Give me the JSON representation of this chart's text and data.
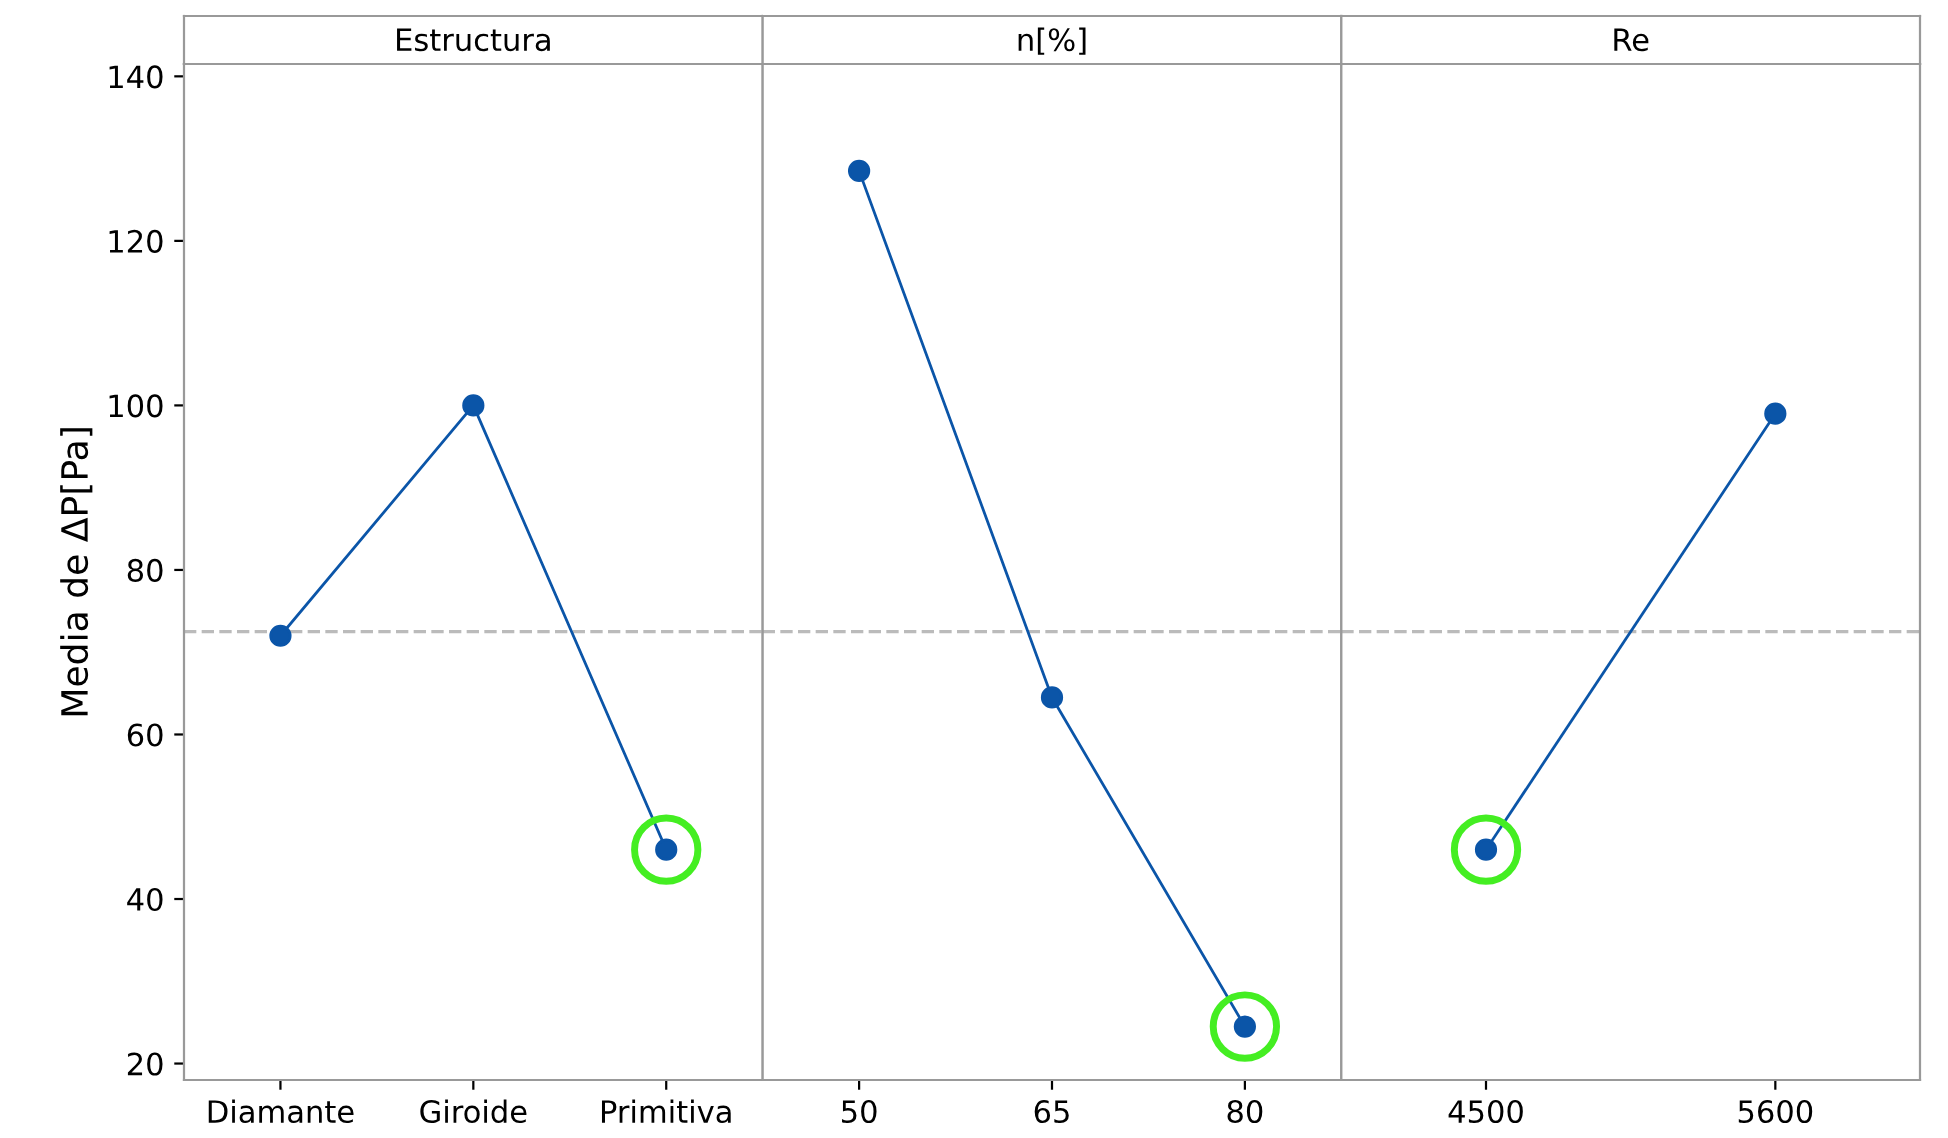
{
  "chart_data": [
    {
      "type": "line",
      "title": "Estructura",
      "ylabel": "Media de ΔP[Pa]",
      "categories": [
        "Diamante",
        "Giroide",
        "Primitiva"
      ],
      "ylim": [
        18,
        141.5
      ],
      "yticks": [
        20,
        40,
        60,
        80,
        100,
        120,
        140
      ],
      "marker": "circle",
      "grid": false,
      "series": [
        {
          "color": "#0b55a8",
          "values": [
            72,
            100,
            46
          ]
        },
        {
          "type": "scatter",
          "color": "#44ee22",
          "values": [
            null,
            null,
            46
          ]
        }
      ],
      "ref_lines": [
        {
          "axis": "y",
          "value": 72.5,
          "color": "#bbbbbb",
          "line_style": "dashed"
        }
      ]
    },
    {
      "type": "line",
      "title": "n[%]",
      "categories": [
        "50",
        "65",
        "80"
      ],
      "ylim": [
        18,
        141.5
      ],
      "tick_labels": "x",
      "marker": "circle",
      "grid": false,
      "series": [
        {
          "color": "#0b55a8",
          "values": [
            128.5,
            64.5,
            24.5
          ]
        },
        {
          "type": "scatter",
          "color": "#44ee22",
          "values": [
            null,
            null,
            24.5
          ]
        }
      ],
      "ref_lines": [
        {
          "axis": "y",
          "value": 72.5,
          "color": "#bbbbbb",
          "line_style": "dashed"
        }
      ]
    },
    {
      "type": "line",
      "title": "Re",
      "categories": [
        "4500",
        "5600"
      ],
      "ylim": [
        18,
        141.5
      ],
      "tick_labels": "x",
      "marker": "circle",
      "grid": false,
      "series": [
        {
          "color": "#0b55a8",
          "values": [
            46,
            99
          ]
        },
        {
          "type": "scatter",
          "color": "#44ee22",
          "values": [
            46,
            null
          ]
        }
      ],
      "ref_lines": [
        {
          "axis": "y",
          "value": 72.5,
          "color": "#bbbbbb",
          "line_style": "dashed"
        }
      ]
    }
  ]
}
